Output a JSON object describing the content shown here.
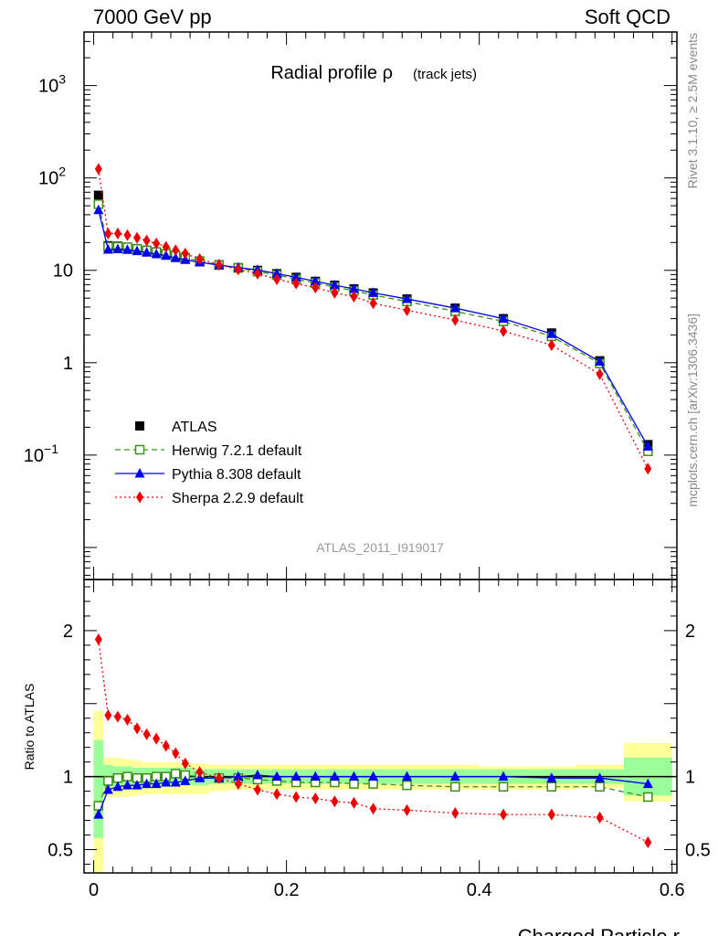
{
  "header": {
    "left": "7000 GeV pp",
    "right": "Soft QCD"
  },
  "side_text": {
    "top": "Rivet 3.1.10, ≥ 2.5M events",
    "bottom": "mcplots.cern.ch [arXiv:1306.3436]"
  },
  "watermark": "ATLAS_2011_I919017",
  "chart_data": [
    {
      "type": "scatter",
      "panel": "main",
      "title": "Radial profile ρ",
      "subtitle": "(track jets)",
      "xlabel": "Charged Particle r",
      "ylabel": "",
      "yscale": "log",
      "xlim": [
        -0.01,
        0.605
      ],
      "ylim": [
        0.0045,
        3800
      ],
      "yticks": [
        {
          "value": 1000,
          "label": "10",
          "exp": "3"
        },
        {
          "value": 100,
          "label": "10",
          "exp": "2"
        },
        {
          "value": 10,
          "label": "10",
          "exp": ""
        },
        {
          "value": 1,
          "label": "1",
          "exp": ""
        },
        {
          "value": 0.1,
          "label": "10",
          "exp": "−1"
        }
      ],
      "legend_position": "lower-left",
      "x": [
        0.005,
        0.015,
        0.025,
        0.035,
        0.045,
        0.055,
        0.065,
        0.075,
        0.085,
        0.095,
        0.11,
        0.13,
        0.15,
        0.17,
        0.19,
        0.21,
        0.23,
        0.25,
        0.27,
        0.29,
        0.325,
        0.375,
        0.425,
        0.475,
        0.525,
        0.575
      ],
      "series": [
        {
          "name": "ATLAS",
          "color": "#000000",
          "marker": "square-filled",
          "line": "none",
          "values": [
            65,
            18.5,
            18.3,
            17.8,
            17.2,
            16.5,
            15.8,
            15,
            14.2,
            13.5,
            12.5,
            11.5,
            10.7,
            10,
            9.2,
            8.4,
            7.6,
            6.9,
            6.3,
            5.7,
            4.9,
            3.9,
            3.0,
            2.1,
            1.05,
            0.13
          ]
        },
        {
          "name": "Herwig 7.2.1 default",
          "color": "#3a8f1a",
          "marker": "square-open",
          "line": "dashed",
          "values": [
            52,
            18,
            18,
            17.8,
            17.1,
            16.4,
            15.8,
            15.1,
            14.5,
            13.7,
            12.6,
            11.4,
            10.6,
            9.7,
            8.9,
            8.0,
            7.3,
            6.6,
            6.0,
            5.4,
            4.6,
            3.6,
            2.8,
            1.93,
            0.98,
            0.11
          ]
        },
        {
          "name": "Pythia 8.308 default",
          "color": "#0000ee",
          "marker": "triangle",
          "line": "solid",
          "values": [
            45,
            16.8,
            17.0,
            16.7,
            16.2,
            15.6,
            15.0,
            14.4,
            13.6,
            13.0,
            12.2,
            11.4,
            10.7,
            10.1,
            9.2,
            8.4,
            7.6,
            6.9,
            6.3,
            5.7,
            4.9,
            3.9,
            3.0,
            2.05,
            1.03,
            0.124
          ]
        },
        {
          "name": "Sherpa 2.2.9 default",
          "color": "#ee0000",
          "marker": "diamond",
          "line": "dotted",
          "values": [
            125,
            25,
            25,
            24,
            22.5,
            21,
            19.5,
            18,
            16.5,
            15.2,
            13.2,
            11.5,
            10.2,
            9.2,
            8.0,
            7.2,
            6.5,
            5.7,
            5.2,
            4.4,
            3.7,
            2.9,
            2.2,
            1.55,
            0.75,
            0.071
          ]
        }
      ]
    },
    {
      "type": "scatter",
      "panel": "ratio",
      "xlabel": "Charged Particle r",
      "ylabel": "Ratio to ATLAS",
      "xlim": [
        -0.01,
        0.605
      ],
      "ylim": [
        0.34,
        2.35
      ],
      "xticks": [
        {
          "value": 0,
          "label": "0"
        },
        {
          "value": 0.2,
          "label": "0.2"
        },
        {
          "value": 0.4,
          "label": "0.4"
        },
        {
          "value": 0.6,
          "label": "0.6"
        }
      ],
      "yticks": [
        {
          "value": 0.5,
          "label": "0.5"
        },
        {
          "value": 1,
          "label": "1"
        },
        {
          "value": 2,
          "label": "2"
        }
      ],
      "x": [
        0.005,
        0.015,
        0.025,
        0.035,
        0.045,
        0.055,
        0.065,
        0.075,
        0.085,
        0.095,
        0.11,
        0.13,
        0.15,
        0.17,
        0.19,
        0.21,
        0.23,
        0.25,
        0.27,
        0.29,
        0.325,
        0.375,
        0.425,
        0.475,
        0.525,
        0.575
      ],
      "bands": [
        {
          "name": "stat+syst (outer)",
          "color": "#ffff99",
          "lo": [
            0.15,
            0.86,
            0.86,
            0.86,
            0.87,
            0.88,
            0.88,
            0.88,
            0.88,
            0.88,
            0.88,
            0.9,
            0.91,
            0.91,
            0.91,
            0.91,
            0.91,
            0.91,
            0.91,
            0.91,
            0.91,
            0.91,
            0.91,
            0.91,
            0.92,
            0.83
          ],
          "hi": [
            1.45,
            1.13,
            1.13,
            1.12,
            1.11,
            1.1,
            1.1,
            1.1,
            1.1,
            1.09,
            1.09,
            1.08,
            1.08,
            1.08,
            1.08,
            1.08,
            1.08,
            1.08,
            1.08,
            1.08,
            1.08,
            1.08,
            1.07,
            1.07,
            1.08,
            1.23
          ]
        },
        {
          "name": "stat (inner)",
          "color": "#99ff99",
          "lo": [
            0.58,
            0.93,
            0.93,
            0.93,
            0.93,
            0.94,
            0.94,
            0.94,
            0.94,
            0.94,
            0.94,
            0.95,
            0.95,
            0.95,
            0.95,
            0.95,
            0.95,
            0.95,
            0.95,
            0.95,
            0.95,
            0.95,
            0.95,
            0.95,
            0.95,
            0.87
          ],
          "hi": [
            1.25,
            1.08,
            1.07,
            1.07,
            1.06,
            1.06,
            1.06,
            1.06,
            1.06,
            1.06,
            1.05,
            1.05,
            1.05,
            1.05,
            1.05,
            1.05,
            1.05,
            1.05,
            1.05,
            1.05,
            1.05,
            1.05,
            1.05,
            1.05,
            1.05,
            1.13
          ]
        }
      ],
      "series": [
        {
          "name": "Herwig 7.2.1 default",
          "color": "#3a8f1a",
          "marker": "square-open",
          "line": "dashed",
          "values": [
            0.8,
            0.97,
            0.99,
            1.0,
            0.99,
            0.99,
            1.0,
            1.0,
            1.02,
            1.01,
            1.0,
            0.99,
            0.99,
            0.98,
            0.97,
            0.96,
            0.96,
            0.96,
            0.95,
            0.95,
            0.94,
            0.93,
            0.93,
            0.93,
            0.93,
            0.86
          ]
        },
        {
          "name": "Pythia 8.308 default",
          "color": "#0000ee",
          "marker": "triangle",
          "line": "solid",
          "values": [
            0.74,
            0.91,
            0.93,
            0.94,
            0.94,
            0.95,
            0.95,
            0.96,
            0.96,
            0.97,
            0.99,
            0.99,
            1.0,
            1.01,
            1.0,
            1.0,
            1.0,
            1.0,
            1.0,
            1.0,
            1.0,
            1.0,
            1.0,
            0.99,
            0.99,
            0.95
          ]
        },
        {
          "name": "Sherpa 2.2.9 default",
          "color": "#ee0000",
          "marker": "diamond",
          "line": "dotted",
          "values": [
            1.94,
            1.42,
            1.41,
            1.39,
            1.33,
            1.29,
            1.26,
            1.21,
            1.16,
            1.09,
            1.03,
            0.99,
            0.95,
            0.91,
            0.88,
            0.86,
            0.85,
            0.83,
            0.82,
            0.78,
            0.77,
            0.75,
            0.74,
            0.74,
            0.72,
            0.55
          ]
        }
      ]
    }
  ]
}
